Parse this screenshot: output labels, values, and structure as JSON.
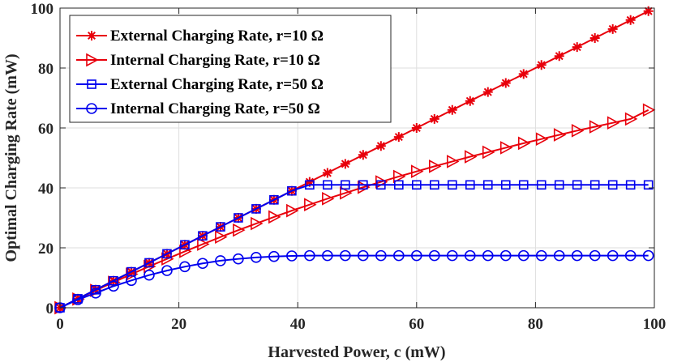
{
  "chart_data": {
    "type": "line",
    "title": "",
    "xlabel": "Harvested Power, c (mW)",
    "ylabel": "Optimal Charging Rate (mW)",
    "xlim": [
      0,
      100
    ],
    "ylim": [
      0,
      100
    ],
    "xticks": [
      0,
      20,
      40,
      60,
      80,
      100
    ],
    "yticks": [
      0,
      20,
      40,
      60,
      80,
      100
    ],
    "grid": true,
    "legend_position": "top-left",
    "x": [
      0,
      3,
      6,
      9,
      12,
      15,
      18,
      21,
      24,
      27,
      30,
      33,
      36,
      39,
      42,
      45,
      48,
      51,
      54,
      57,
      60,
      63,
      66,
      69,
      72,
      75,
      78,
      81,
      84,
      87,
      90,
      93,
      96,
      99
    ],
    "series": [
      {
        "name": "External Charging Rate, r=10 Ω",
        "color": "#e8000b",
        "marker": "asterisk",
        "values": [
          0,
          3,
          6,
          9,
          12,
          15,
          18,
          21,
          24,
          27,
          30,
          33,
          36,
          39,
          42,
          45,
          48,
          51,
          54,
          57,
          60,
          63,
          66,
          69,
          72,
          75,
          78,
          81,
          84,
          87,
          90,
          93,
          96,
          99
        ]
      },
      {
        "name": "Internal Charging Rate, r=10 Ω",
        "color": "#e8000b",
        "marker": "triangle-right",
        "values": [
          0,
          2.9,
          5.8,
          8.5,
          11.2,
          13.8,
          16.3,
          18.8,
          21.2,
          23.6,
          25.9,
          28.1,
          30.3,
          32.4,
          34.4,
          36.4,
          38.3,
          40.2,
          42.0,
          43.8,
          45.5,
          47.2,
          48.8,
          50.4,
          51.9,
          53.4,
          54.9,
          56.3,
          57.7,
          59.1,
          60.4,
          61.7,
          63.0,
          66.0
        ]
      },
      {
        "name": "External Charging Rate, r=50 Ω",
        "color": "#0000ee",
        "marker": "square",
        "values": [
          0,
          3,
          6,
          9,
          12,
          15,
          18,
          21,
          24,
          27,
          30,
          33,
          36,
          39,
          41,
          41,
          41,
          41,
          41,
          41,
          41,
          41,
          41,
          41,
          41,
          41,
          41,
          41,
          41,
          41,
          41,
          41,
          41,
          41
        ]
      },
      {
        "name": "Internal Charging Rate, r=50 Ω",
        "color": "#0000ee",
        "marker": "circle",
        "values": [
          0,
          2.7,
          4.9,
          7.2,
          9.1,
          10.9,
          12.4,
          13.7,
          14.8,
          15.7,
          16.3,
          16.8,
          17.1,
          17.3,
          17.4,
          17.4,
          17.4,
          17.4,
          17.4,
          17.4,
          17.4,
          17.4,
          17.4,
          17.4,
          17.4,
          17.4,
          17.4,
          17.4,
          17.4,
          17.4,
          17.4,
          17.4,
          17.4,
          17.4
        ]
      }
    ]
  }
}
